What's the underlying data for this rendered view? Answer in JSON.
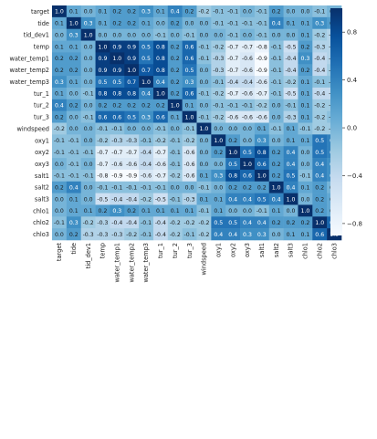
{
  "chart_data": {
    "type": "heatmap",
    "labels": [
      "target",
      "tide",
      "tid_dev1",
      "temp",
      "water_temp1",
      "water_temp2",
      "water_temp3",
      "tur_1",
      "tur_2",
      "tur_3",
      "windspeed",
      "oxy1",
      "oxy2",
      "oxy3",
      "salt1",
      "salt2",
      "salt3",
      "chlo1",
      "chlo2",
      "chlo3"
    ],
    "matrix": [
      [
        1.0,
        0.1,
        0.0,
        0.1,
        0.2,
        0.2,
        0.3,
        0.1,
        0.4,
        0.2,
        -0.2,
        -0.1,
        -0.1,
        -0.0,
        -0.1,
        0.2,
        -0.0,
        -0.0,
        -0.1,
        0.0
      ],
      [
        0.1,
        1.0,
        0.3,
        0.1,
        0.2,
        0.2,
        0.1,
        0.0,
        0.2,
        0.0,
        -0.0,
        -0.1,
        -0.1,
        -0.1,
        -0.1,
        0.4,
        0.1,
        0.1,
        0.3,
        0.2
      ],
      [
        0.0,
        0.3,
        1.0,
        0.0,
        0.0,
        0.0,
        0.0,
        -0.1,
        0.0,
        -0.1,
        -0.0,
        -0.0,
        -0.1,
        -0.0,
        -0.1,
        0.0,
        0.0,
        0.1,
        -0.2,
        -0.3
      ],
      [
        0.1,
        0.1,
        0.0,
        1.0,
        0.9,
        0.9,
        0.5,
        0.8,
        0.2,
        0.6,
        -0.1,
        -0.2,
        -0.7,
        -0.7,
        -0.8,
        -0.1,
        -0.5,
        0.2,
        -0.3,
        -0.3
      ],
      [
        0.2,
        0.2,
        0.0,
        0.9,
        1.0,
        0.9,
        0.5,
        0.8,
        0.2,
        0.6,
        -0.1,
        -0.3,
        -0.7,
        -0.6,
        -0.9,
        -0.1,
        -0.4,
        0.3,
        -0.4,
        -0.3
      ],
      [
        0.2,
        0.2,
        0.0,
        0.9,
        0.9,
        1.0,
        0.7,
        0.8,
        0.2,
        0.5,
        -0.0,
        -0.3,
        -0.7,
        -0.6,
        -0.9,
        -0.1,
        -0.4,
        0.2,
        -0.4,
        -0.2
      ],
      [
        0.3,
        0.1,
        0.0,
        0.5,
        0.5,
        0.7,
        1.0,
        0.4,
        0.2,
        0.3,
        -0.0,
        -0.1,
        -0.4,
        -0.4,
        -0.6,
        -0.1,
        -0.2,
        0.1,
        -0.1,
        -0.1
      ],
      [
        0.1,
        0.0,
        -0.1,
        0.8,
        0.8,
        0.8,
        0.4,
        1.0,
        0.2,
        0.6,
        -0.1,
        -0.2,
        -0.7,
        -0.6,
        -0.7,
        -0.1,
        -0.5,
        0.1,
        -0.4,
        -0.4
      ],
      [
        0.4,
        0.2,
        0.0,
        0.2,
        0.2,
        0.2,
        0.2,
        0.2,
        1.0,
        0.1,
        -0.0,
        -0.1,
        -0.1,
        -0.1,
        -0.2,
        -0.0,
        -0.1,
        0.1,
        -0.2,
        -0.2
      ],
      [
        0.2,
        0.0,
        -0.1,
        0.6,
        0.6,
        0.5,
        0.3,
        0.6,
        0.1,
        1.0,
        -0.1,
        -0.2,
        -0.6,
        -0.6,
        -0.6,
        -0.0,
        -0.3,
        0.1,
        -0.2,
        -0.1
      ],
      [
        -0.2,
        -0.0,
        -0.0,
        -0.1,
        -0.1,
        -0.0,
        -0.0,
        -0.1,
        -0.0,
        -0.1,
        1.0,
        0.0,
        -0.0,
        0.0,
        0.1,
        -0.1,
        0.1,
        -0.1,
        -0.2,
        -0.2
      ],
      [
        -0.1,
        -0.1,
        -0.0,
        -0.2,
        -0.3,
        -0.3,
        -0.1,
        -0.2,
        -0.1,
        -0.2,
        0.0,
        1.0,
        0.2,
        0.0,
        0.3,
        0.0,
        0.1,
        0.1,
        0.5,
        0.4
      ],
      [
        -0.1,
        -0.1,
        -0.1,
        -0.7,
        -0.7,
        -0.7,
        -0.4,
        -0.7,
        -0.1,
        -0.6,
        -0.0,
        0.2,
        1.0,
        0.5,
        0.8,
        0.2,
        0.4,
        -0.0,
        0.5,
        0.4
      ],
      [
        -0.0,
        -0.1,
        -0.0,
        -0.7,
        -0.6,
        -0.6,
        -0.4,
        -0.6,
        -0.1,
        -0.6,
        0.0,
        0.0,
        0.5,
        1.0,
        0.6,
        0.2,
        0.4,
        -0.0,
        0.4,
        0.3
      ],
      [
        -0.1,
        -0.1,
        -0.1,
        -0.8,
        -0.9,
        -0.9,
        -0.6,
        -0.7,
        -0.2,
        -0.6,
        0.1,
        0.3,
        0.8,
        0.6,
        1.0,
        0.2,
        0.5,
        -0.1,
        0.4,
        0.3
      ],
      [
        0.2,
        0.4,
        0.0,
        -0.1,
        -0.1,
        -0.1,
        -0.1,
        -0.1,
        -0.0,
        -0.0,
        -0.1,
        0.0,
        0.2,
        0.2,
        0.2,
        1.0,
        0.4,
        0.1,
        0.2,
        -0.0
      ],
      [
        -0.0,
        0.1,
        0.0,
        -0.5,
        -0.4,
        -0.4,
        -0.2,
        -0.5,
        -0.1,
        -0.3,
        0.1,
        0.1,
        0.4,
        0.4,
        0.5,
        0.4,
        1.0,
        -0.0,
        0.2,
        0.1
      ],
      [
        -0.0,
        0.1,
        0.1,
        0.2,
        0.3,
        0.2,
        0.1,
        0.1,
        0.1,
        0.1,
        -0.1,
        0.1,
        -0.0,
        -0.0,
        -0.1,
        0.1,
        -0.0,
        1.0,
        0.2,
        0.1
      ],
      [
        -0.1,
        0.3,
        -0.2,
        -0.3,
        -0.4,
        -0.4,
        -0.1,
        -0.4,
        -0.2,
        -0.2,
        -0.2,
        0.5,
        0.5,
        0.4,
        0.4,
        0.2,
        0.2,
        0.2,
        1.0,
        0.6
      ],
      [
        0.0,
        0.2,
        -0.3,
        -0.3,
        -0.3,
        -0.2,
        -0.1,
        -0.4,
        -0.2,
        -0.1,
        -0.2,
        0.4,
        0.4,
        0.3,
        0.3,
        -0.0,
        0.1,
        0.1,
        0.6,
        1.0
      ]
    ],
    "value_range": [
      -0.9,
      1.0
    ],
    "colorbar": {
      "ticks": [
        0.8,
        0.4,
        0.0,
        -0.4,
        -0.8
      ],
      "tick_labels": [
        "0.8",
        "0.4",
        "0.0",
        "−0.4",
        "−0.8"
      ]
    },
    "colormap": [
      "#f7fbff",
      "#deebf7",
      "#c6dbef",
      "#9ecae1",
      "#6baed6",
      "#4292c6",
      "#2171b5",
      "#08519c",
      "#08306b"
    ],
    "annotations": "all cells, 1 decimal",
    "title": "",
    "xlabel": "",
    "ylabel": ""
  }
}
